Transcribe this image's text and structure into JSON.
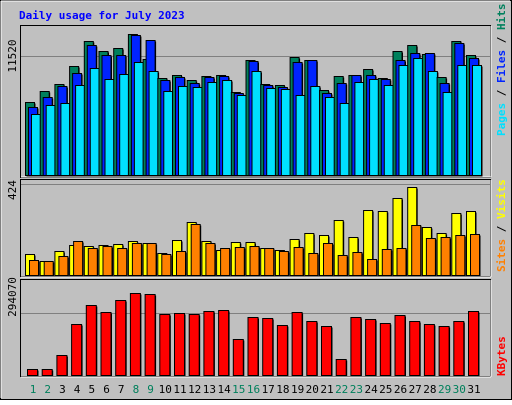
{
  "chart_data": [
    {
      "type": "bar",
      "title": "Daily usage for July 2023",
      "categories": [
        "1",
        "2",
        "3",
        "4",
        "5",
        "6",
        "7",
        "8",
        "9",
        "10",
        "11",
        "12",
        "13",
        "14",
        "15",
        "16",
        "17",
        "18",
        "19",
        "20",
        "21",
        "22",
        "23",
        "24",
        "25",
        "26",
        "27",
        "28",
        "29",
        "30",
        "31"
      ],
      "weekend_days": [
        "1",
        "2",
        "8",
        "9",
        "15",
        "16",
        "22",
        "23",
        "29",
        "30"
      ],
      "y_tick_label": "11520",
      "y_max": 13600,
      "series": [
        {
          "name": "Hits",
          "color": "#00805c",
          "values": [
            6900,
            7900,
            8600,
            10200,
            12600,
            11600,
            11900,
            13200,
            10900,
            9100,
            9400,
            8900,
            9300,
            9400,
            7800,
            10800,
            8600,
            8500,
            11100,
            10800,
            8000,
            9300,
            9400,
            10000,
            9100,
            11600,
            12200,
            11400,
            9200,
            12600,
            11300
          ]
        },
        {
          "name": "Files",
          "color": "#0024ff",
          "values": [
            6400,
            7400,
            8400,
            9600,
            12200,
            11300,
            11300,
            13100,
            12700,
            8900,
            9200,
            8700,
            9200,
            9300,
            7700,
            10700,
            8500,
            8300,
            10600,
            10800,
            7700,
            8700,
            9400,
            9400,
            9000,
            10800,
            11500,
            11500,
            8700,
            12400,
            11000
          ]
        },
        {
          "name": "Pages",
          "color": "#00e0ff",
          "values": [
            5800,
            6600,
            6800,
            8500,
            10100,
            9000,
            9500,
            10600,
            9800,
            7900,
            8400,
            8300,
            8800,
            8900,
            7500,
            9800,
            8200,
            8100,
            7500,
            8400,
            7400,
            6800,
            8800,
            9000,
            8500,
            10300,
            11000,
            9800,
            7800,
            10300,
            10300
          ]
        }
      ]
    },
    {
      "type": "bar",
      "categories": [
        "1",
        "2",
        "3",
        "4",
        "5",
        "6",
        "7",
        "8",
        "9",
        "10",
        "11",
        "12",
        "13",
        "14",
        "15",
        "16",
        "17",
        "18",
        "19",
        "20",
        "21",
        "22",
        "23",
        "24",
        "25",
        "26",
        "27",
        "28",
        "29",
        "30",
        "31"
      ],
      "y_tick_label": "424",
      "y_max": 424,
      "series": [
        {
          "name": "Visits",
          "color": "#ffff00",
          "values": [
            100,
            70,
            115,
            145,
            140,
            145,
            148,
            160,
            150,
            105,
            165,
            250,
            160,
            120,
            155,
            155,
            130,
            120,
            170,
            200,
            190,
            260,
            180,
            305,
            300,
            360,
            410,
            225,
            200,
            290,
            300
          ]
        },
        {
          "name": "Sites",
          "color": "#ff8000",
          "values": [
            75,
            70,
            90,
            160,
            130,
            140,
            130,
            150,
            150,
            100,
            115,
            240,
            150,
            130,
            135,
            140,
            130,
            115,
            135,
            105,
            150,
            95,
            110,
            80,
            125,
            130,
            235,
            175,
            180,
            190,
            195
          ]
        }
      ]
    },
    {
      "type": "bar",
      "categories": [
        "1",
        "2",
        "3",
        "4",
        "5",
        "6",
        "7",
        "8",
        "9",
        "10",
        "11",
        "12",
        "13",
        "14",
        "15",
        "16",
        "17",
        "18",
        "19",
        "20",
        "21",
        "22",
        "23",
        "24",
        "25",
        "26",
        "27",
        "28",
        "29",
        "30",
        "31"
      ],
      "y_tick_label": "294070",
      "y_max": 378000,
      "series": [
        {
          "name": "KBytes",
          "color": "#ff0000",
          "values": [
            29000,
            29000,
            87000,
            215000,
            292000,
            264000,
            311000,
            343000,
            335000,
            255000,
            259000,
            254000,
            268000,
            270000,
            151000,
            241000,
            237000,
            210000,
            263000,
            224000,
            204000,
            70000,
            241000,
            236000,
            216000,
            252000,
            225000,
            212000,
            205000,
            226000,
            269000
          ]
        }
      ]
    }
  ],
  "colors": {
    "background": "#c0c0c0",
    "title": "#0000ff",
    "weekday_label": "#000000",
    "weekend_label": "#00805c",
    "gridline": "#808080"
  }
}
